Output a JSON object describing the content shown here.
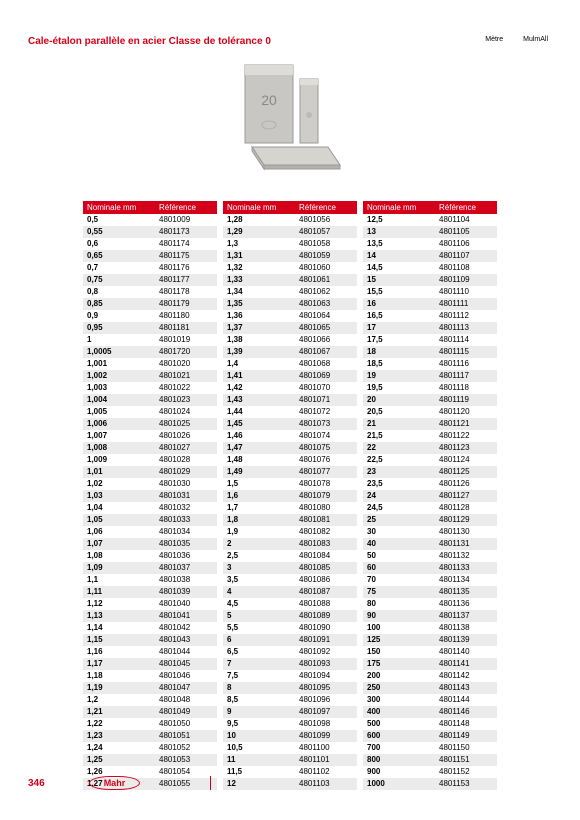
{
  "title": "Cale-étalon parallèle en acier Classe de tolérance 0",
  "top_right_labels": [
    "Mètre",
    "MulmAll"
  ],
  "table_headers": {
    "nominal": "Nominale mm",
    "reference": "Référence"
  },
  "tables": [
    [
      [
        "0,5",
        "4801009"
      ],
      [
        "0,55",
        "4801173"
      ],
      [
        "0,6",
        "4801174"
      ],
      [
        "0,65",
        "4801175"
      ],
      [
        "0,7",
        "4801176"
      ],
      [
        "0,75",
        "4801177"
      ],
      [
        "0,8",
        "4801178"
      ],
      [
        "0,85",
        "4801179"
      ],
      [
        "0,9",
        "4801180"
      ],
      [
        "0,95",
        "4801181"
      ],
      [
        "1",
        "4801019"
      ],
      [
        "1,0005",
        "4801720"
      ],
      [
        "1,001",
        "4801020"
      ],
      [
        "1,002",
        "4801021"
      ],
      [
        "1,003",
        "4801022"
      ],
      [
        "1,004",
        "4801023"
      ],
      [
        "1,005",
        "4801024"
      ],
      [
        "1,006",
        "4801025"
      ],
      [
        "1,007",
        "4801026"
      ],
      [
        "1,008",
        "4801027"
      ],
      [
        "1,009",
        "4801028"
      ],
      [
        "1,01",
        "4801029"
      ],
      [
        "1,02",
        "4801030"
      ],
      [
        "1,03",
        "4801031"
      ],
      [
        "1,04",
        "4801032"
      ],
      [
        "1,05",
        "4801033"
      ],
      [
        "1,06",
        "4801034"
      ],
      [
        "1,07",
        "4801035"
      ],
      [
        "1,08",
        "4801036"
      ],
      [
        "1,09",
        "4801037"
      ],
      [
        "1,1",
        "4801038"
      ],
      [
        "1,11",
        "4801039"
      ],
      [
        "1,12",
        "4801040"
      ],
      [
        "1,13",
        "4801041"
      ],
      [
        "1,14",
        "4801042"
      ],
      [
        "1,15",
        "4801043"
      ],
      [
        "1,16",
        "4801044"
      ],
      [
        "1,17",
        "4801045"
      ],
      [
        "1,18",
        "4801046"
      ],
      [
        "1,19",
        "4801047"
      ],
      [
        "1,2",
        "4801048"
      ],
      [
        "1,21",
        "4801049"
      ],
      [
        "1,22",
        "4801050"
      ],
      [
        "1,23",
        "4801051"
      ],
      [
        "1,24",
        "4801052"
      ],
      [
        "1,25",
        "4801053"
      ],
      [
        "1,26",
        "4801054"
      ],
      [
        "1,27",
        "4801055"
      ]
    ],
    [
      [
        "1,28",
        "4801056"
      ],
      [
        "1,29",
        "4801057"
      ],
      [
        "1,3",
        "4801058"
      ],
      [
        "1,31",
        "4801059"
      ],
      [
        "1,32",
        "4801060"
      ],
      [
        "1,33",
        "4801061"
      ],
      [
        "1,34",
        "4801062"
      ],
      [
        "1,35",
        "4801063"
      ],
      [
        "1,36",
        "4801064"
      ],
      [
        "1,37",
        "4801065"
      ],
      [
        "1,38",
        "4801066"
      ],
      [
        "1,39",
        "4801067"
      ],
      [
        "1,4",
        "4801068"
      ],
      [
        "1,41",
        "4801069"
      ],
      [
        "1,42",
        "4801070"
      ],
      [
        "1,43",
        "4801071"
      ],
      [
        "1,44",
        "4801072"
      ],
      [
        "1,45",
        "4801073"
      ],
      [
        "1,46",
        "4801074"
      ],
      [
        "1,47",
        "4801075"
      ],
      [
        "1,48",
        "4801076"
      ],
      [
        "1,49",
        "4801077"
      ],
      [
        "1,5",
        "4801078"
      ],
      [
        "1,6",
        "4801079"
      ],
      [
        "1,7",
        "4801080"
      ],
      [
        "1,8",
        "4801081"
      ],
      [
        "1,9",
        "4801082"
      ],
      [
        "2",
        "4801083"
      ],
      [
        "2,5",
        "4801084"
      ],
      [
        "3",
        "4801085"
      ],
      [
        "3,5",
        "4801086"
      ],
      [
        "4",
        "4801087"
      ],
      [
        "4,5",
        "4801088"
      ],
      [
        "5",
        "4801089"
      ],
      [
        "5,5",
        "4801090"
      ],
      [
        "6",
        "4801091"
      ],
      [
        "6,5",
        "4801092"
      ],
      [
        "7",
        "4801093"
      ],
      [
        "7,5",
        "4801094"
      ],
      [
        "8",
        "4801095"
      ],
      [
        "8,5",
        "4801096"
      ],
      [
        "9",
        "4801097"
      ],
      [
        "9,5",
        "4801098"
      ],
      [
        "10",
        "4801099"
      ],
      [
        "10,5",
        "4801100"
      ],
      [
        "11",
        "4801101"
      ],
      [
        "11,5",
        "4801102"
      ],
      [
        "12",
        "4801103"
      ]
    ],
    [
      [
        "12,5",
        "4801104"
      ],
      [
        "13",
        "4801105"
      ],
      [
        "13,5",
        "4801106"
      ],
      [
        "14",
        "4801107"
      ],
      [
        "14,5",
        "4801108"
      ],
      [
        "15",
        "4801109"
      ],
      [
        "15,5",
        "4801110"
      ],
      [
        "16",
        "4801111"
      ],
      [
        "16,5",
        "4801112"
      ],
      [
        "17",
        "4801113"
      ],
      [
        "17,5",
        "4801114"
      ],
      [
        "18",
        "4801115"
      ],
      [
        "18,5",
        "4801116"
      ],
      [
        "19",
        "4801117"
      ],
      [
        "19,5",
        "4801118"
      ],
      [
        "20",
        "4801119"
      ],
      [
        "20,5",
        "4801120"
      ],
      [
        "21",
        "4801121"
      ],
      [
        "21,5",
        "4801122"
      ],
      [
        "22",
        "4801123"
      ],
      [
        "22,5",
        "4801124"
      ],
      [
        "23",
        "4801125"
      ],
      [
        "23,5",
        "4801126"
      ],
      [
        "24",
        "4801127"
      ],
      [
        "24,5",
        "4801128"
      ],
      [
        "25",
        "4801129"
      ],
      [
        "30",
        "4801130"
      ],
      [
        "40",
        "4801131"
      ],
      [
        "50",
        "4801132"
      ],
      [
        "60",
        "4801133"
      ],
      [
        "70",
        "4801134"
      ],
      [
        "75",
        "4801135"
      ],
      [
        "80",
        "4801136"
      ],
      [
        "90",
        "4801137"
      ],
      [
        "100",
        "4801138"
      ],
      [
        "125",
        "4801139"
      ],
      [
        "150",
        "4801140"
      ],
      [
        "175",
        "4801141"
      ],
      [
        "200",
        "4801142"
      ],
      [
        "250",
        "4801143"
      ],
      [
        "300",
        "4801144"
      ],
      [
        "400",
        "4801146"
      ],
      [
        "500",
        "4801148"
      ],
      [
        "600",
        "4801149"
      ],
      [
        "700",
        "4801150"
      ],
      [
        "800",
        "4801151"
      ],
      [
        "900",
        "4801152"
      ],
      [
        "1000",
        "4801153"
      ]
    ]
  ],
  "footer": {
    "page_number": "346",
    "logo_text": "Mahr",
    "right_text": " "
  },
  "colors": {
    "brand_red": "#d4001a",
    "row_alt": "#ebebeb",
    "bg": "#ffffff"
  }
}
